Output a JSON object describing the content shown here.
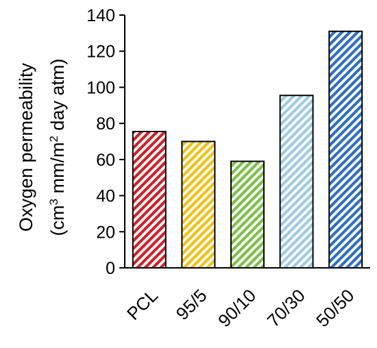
{
  "chart_data": {
    "type": "bar",
    "title": "",
    "xlabel": "",
    "ylabel_line1": "Oxygen permeability",
    "ylabel_line2": {
      "prefix": "(cm",
      "sup1": "3",
      "middle": " mm/m",
      "sup2": "2",
      "suffix": " day atm)"
    },
    "categories": [
      "PCL",
      "95/5",
      "90/10",
      "70/30",
      "50/50"
    ],
    "values": [
      75.5,
      70,
      59,
      95.5,
      131
    ],
    "ylim": [
      0,
      140
    ],
    "yticks": [
      0,
      20,
      40,
      60,
      80,
      100,
      120,
      140
    ],
    "grid": false,
    "legend": "none",
    "bar_colors": [
      "#d0202a",
      "#f2c012",
      "#7ac143",
      "#9ecae6",
      "#2f6fc4"
    ],
    "fill_pattern": "diagonal-hatch"
  }
}
